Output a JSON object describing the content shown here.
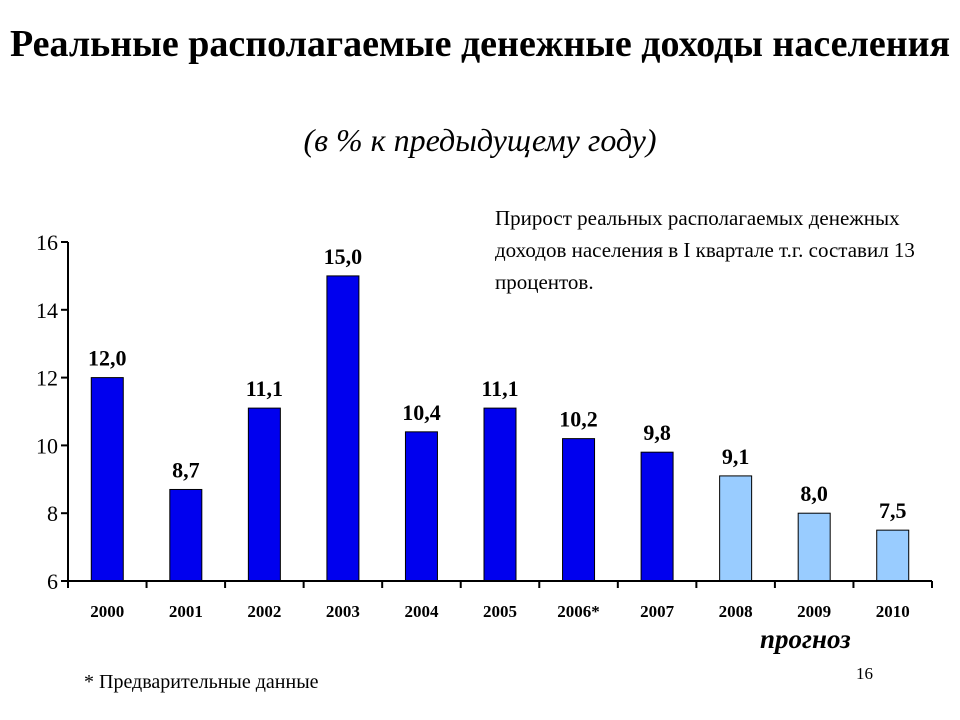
{
  "title": "Реальные располагаемые денежные доходы населения",
  "subtitle": "(в % к предыдущему году)",
  "note": "Прирост реальных располагаемых денежных доходов населения в I квартале т.г. составил 13 процентов.",
  "forecast_label": "прогноз",
  "footnote": "* Предварительные данные",
  "page_number": "16",
  "colors": {
    "actual": "#0000ee",
    "forecast": "#99ccff",
    "bar_stroke": "#000000"
  },
  "chart_data": {
    "type": "bar",
    "categories": [
      "2000",
      "2001",
      "2002",
      "2003",
      "2004",
      "2005",
      "2006*",
      "2007",
      "2008",
      "2009",
      "2010"
    ],
    "values": [
      12.0,
      8.7,
      11.1,
      15.0,
      10.4,
      11.1,
      10.2,
      9.8,
      9.1,
      8.0,
      7.5
    ],
    "value_labels": [
      "12,0",
      "8,7",
      "11,1",
      "15,0",
      "10,4",
      "11,1",
      "10,2",
      "9,8",
      "9,1",
      "8,0",
      "7,5"
    ],
    "forecast": [
      false,
      false,
      false,
      false,
      false,
      false,
      false,
      false,
      true,
      true,
      true
    ],
    "yticks": [
      "6",
      "8",
      "10",
      "12",
      "14",
      "16"
    ],
    "ylim": [
      6,
      16
    ],
    "grid": false
  }
}
